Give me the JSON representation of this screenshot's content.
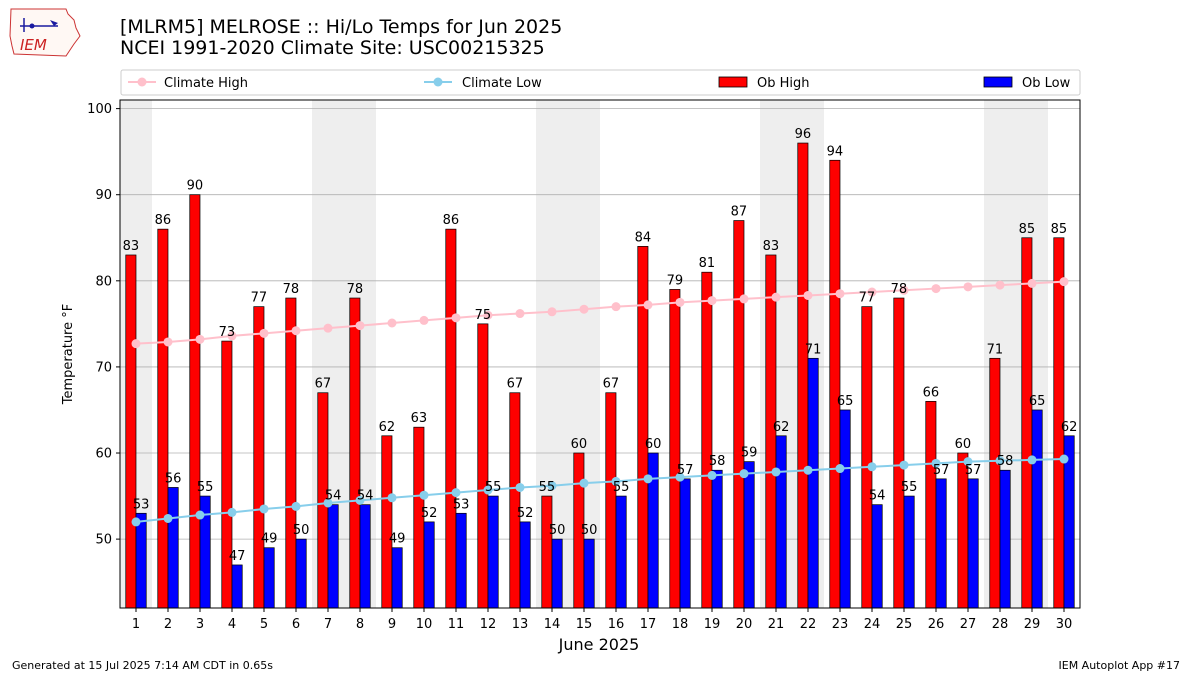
{
  "header": {
    "title_line1": "[MLRM5] MELROSE :: Hi/Lo Temps for Jun 2025",
    "title_line2": "NCEI 1991-2020 Climate Site: USC00215325",
    "logo_text": "IEM"
  },
  "footer": {
    "generated": "Generated at 15 Jul 2025 7:14 AM CDT in 0.65s",
    "app": "IEM Autoplot App #17"
  },
  "colors": {
    "ob_high": "#ff0000",
    "ob_low": "#0000ff",
    "climate_high": "#ffc0cb",
    "climate_low": "#87ceeb",
    "weekend_band": "#eeeeee"
  },
  "chart_data": {
    "type": "bar",
    "xlabel": "June 2025",
    "ylabel": "Temperature °F",
    "ylim": [
      42,
      101
    ],
    "yticks": [
      50,
      60,
      70,
      80,
      90,
      100
    ],
    "grid": true,
    "legend_position": "top",
    "categories": [
      "1",
      "2",
      "3",
      "4",
      "5",
      "6",
      "7",
      "8",
      "9",
      "10",
      "11",
      "12",
      "13",
      "14",
      "15",
      "16",
      "17",
      "18",
      "19",
      "20",
      "21",
      "22",
      "23",
      "24",
      "25",
      "26",
      "27",
      "28",
      "29",
      "30"
    ],
    "weekend_bands": [
      [
        1,
        1
      ],
      [
        7,
        8
      ],
      [
        14,
        15
      ],
      [
        21,
        22
      ],
      [
        28,
        29
      ]
    ],
    "series": [
      {
        "name": "Ob High",
        "kind": "bar",
        "color": "#ff0000",
        "values": [
          83,
          86,
          90,
          73,
          77,
          78,
          67,
          78,
          62,
          63,
          86,
          75,
          67,
          55,
          60,
          67,
          84,
          79,
          81,
          87,
          83,
          96,
          94,
          77,
          78,
          66,
          60,
          71,
          85,
          85
        ]
      },
      {
        "name": "Ob Low",
        "kind": "bar",
        "color": "#0000ff",
        "values": [
          53,
          56,
          55,
          47,
          49,
          50,
          54,
          54,
          49,
          52,
          53,
          55,
          52,
          50,
          50,
          55,
          60,
          57,
          58,
          59,
          62,
          71,
          65,
          54,
          55,
          57,
          57,
          58,
          65,
          62
        ]
      },
      {
        "name": "Climate High",
        "kind": "line",
        "color": "#ffc0cb",
        "values": [
          72.7,
          72.9,
          73.2,
          73.6,
          73.9,
          74.2,
          74.5,
          74.8,
          75.1,
          75.4,
          75.7,
          76.0,
          76.2,
          76.4,
          76.7,
          77.0,
          77.2,
          77.5,
          77.7,
          77.9,
          78.1,
          78.3,
          78.5,
          78.7,
          78.9,
          79.1,
          79.3,
          79.5,
          79.7,
          79.9
        ]
      },
      {
        "name": "Climate Low",
        "kind": "line",
        "color": "#87ceeb",
        "values": [
          52.0,
          52.4,
          52.8,
          53.1,
          53.5,
          53.8,
          54.2,
          54.5,
          54.8,
          55.1,
          55.4,
          55.7,
          56.0,
          56.2,
          56.5,
          56.7,
          57.0,
          57.2,
          57.4,
          57.6,
          57.8,
          58.0,
          58.2,
          58.4,
          58.6,
          58.8,
          59.0,
          59.1,
          59.2,
          59.3
        ]
      }
    ]
  }
}
